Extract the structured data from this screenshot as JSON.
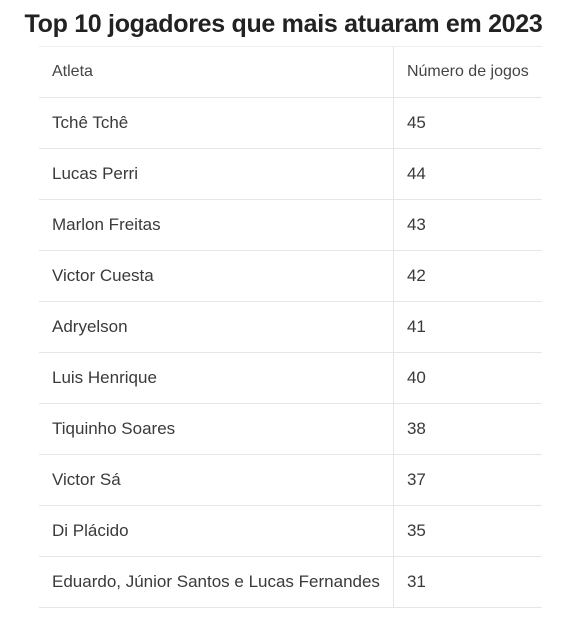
{
  "title": "Top 10 jogadores que mais atuaram em 2023",
  "columns": [
    "Atleta",
    "Número de jogos"
  ],
  "rows": [
    {
      "athlete": "Tchê Tchê",
      "games": "45"
    },
    {
      "athlete": "Lucas Perri",
      "games": "44"
    },
    {
      "athlete": "Marlon Freitas",
      "games": "43"
    },
    {
      "athlete": "Victor Cuesta",
      "games": "42"
    },
    {
      "athlete": "Adryelson",
      "games": "41"
    },
    {
      "athlete": "Luis Henrique",
      "games": "40"
    },
    {
      "athlete": "Tiquinho Soares",
      "games": "38"
    },
    {
      "athlete": "Victor Sá",
      "games": "37"
    },
    {
      "athlete": "Di Plácido",
      "games": "35"
    },
    {
      "athlete": "Eduardo, Júnior Santos e Lucas Fernandes",
      "games": "31"
    }
  ],
  "chart_data": {
    "type": "table",
    "title": "Top 10 jogadores que mais atuaram em 2023",
    "columns": [
      "Atleta",
      "Número de jogos"
    ],
    "categories": [
      "Tchê Tchê",
      "Lucas Perri",
      "Marlon Freitas",
      "Victor Cuesta",
      "Adryelson",
      "Luis Henrique",
      "Tiquinho Soares",
      "Victor Sá",
      "Di Plácido",
      "Eduardo, Júnior Santos e Lucas Fernandes"
    ],
    "values": [
      45,
      44,
      43,
      42,
      41,
      40,
      38,
      37,
      35,
      31
    ]
  }
}
